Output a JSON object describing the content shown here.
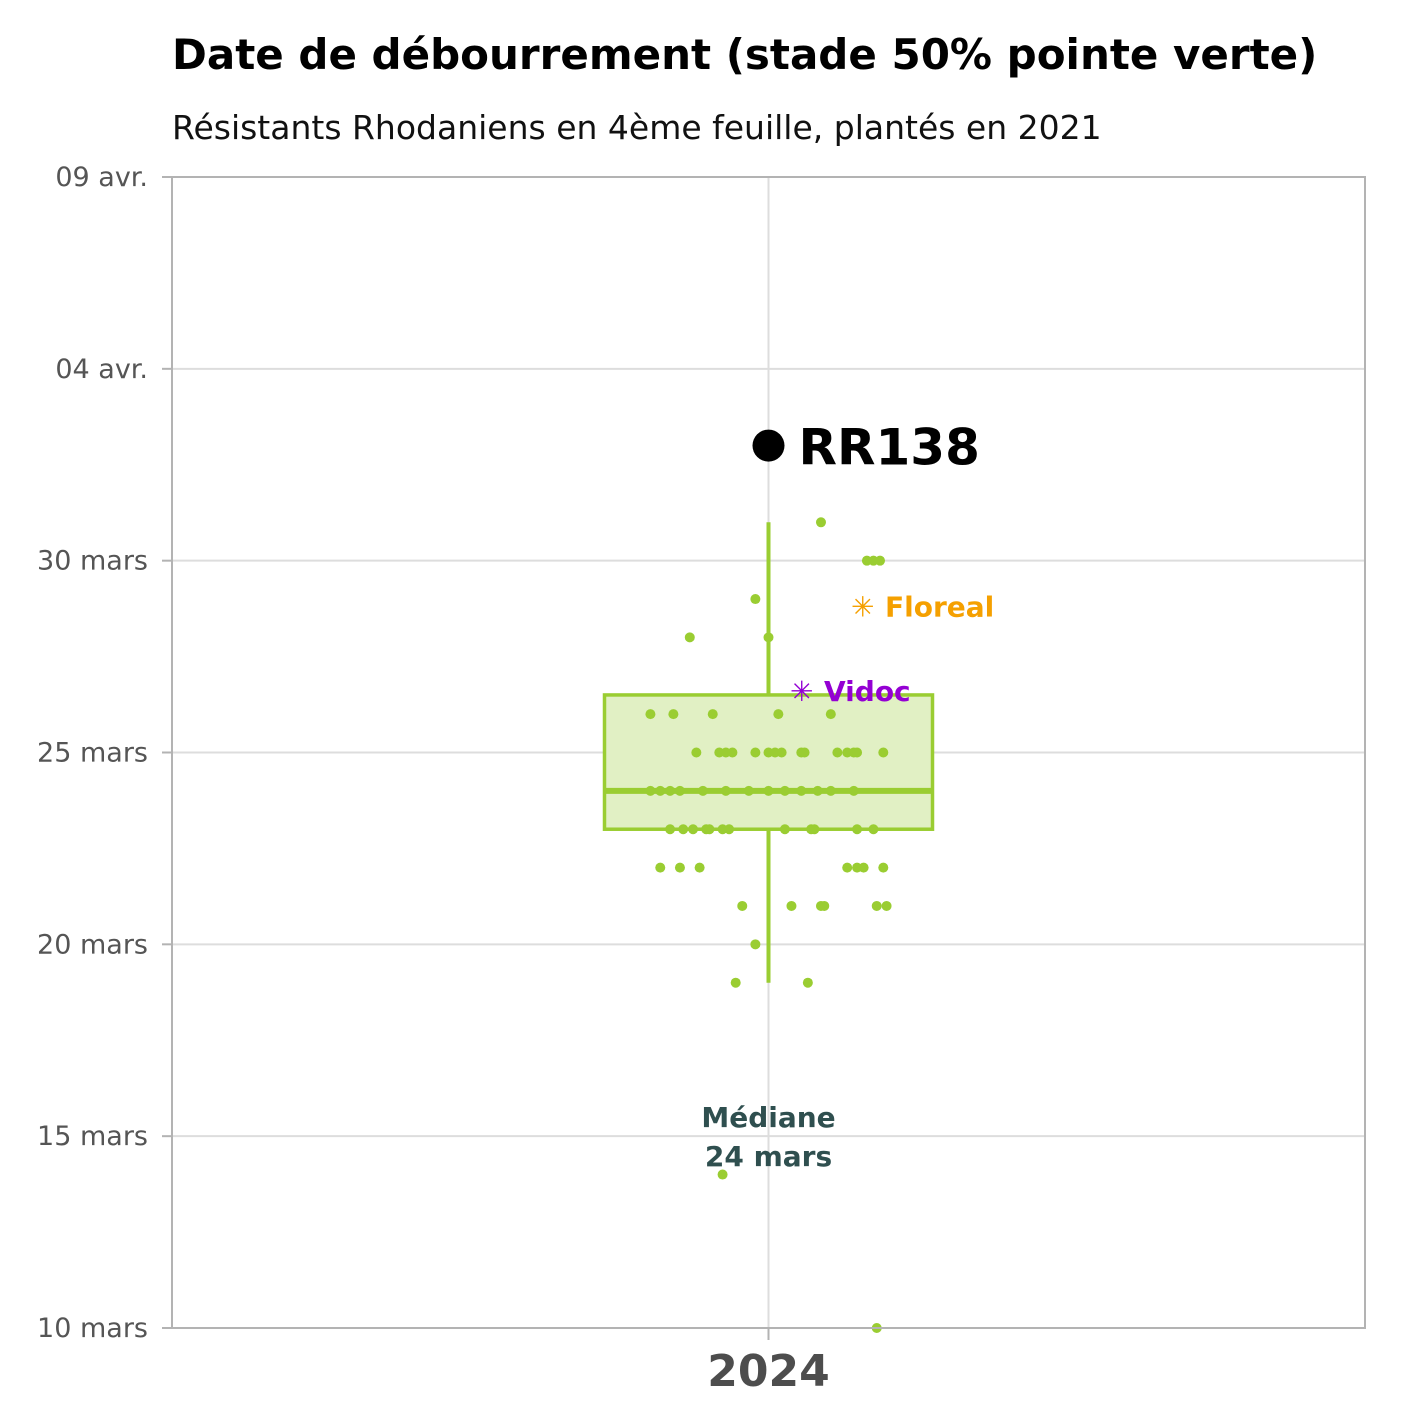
{
  "colors": {
    "box": "#9acd32",
    "box_fill": "#e1f0c4",
    "highlight": "#000000",
    "floreal": "#f5a000",
    "vidoc": "#9400d3",
    "median_label": "#2f4f4f",
    "grid": "#dddddd",
    "frame": "#b3b3b3"
  },
  "chart_data": {
    "type": "box",
    "title": "Date de débourrement (stade 50% pointe verte)",
    "subtitle": "Résistants Rhodaniens en 4ème feuille, plantés en 2021",
    "xlabel": "",
    "ylabel": "",
    "categories": [
      "2024"
    ],
    "ylim": [
      "2024-03-10",
      "2024-04-09"
    ],
    "y_ticks": [
      {
        "date": "2024-03-10",
        "label": "10 mars"
      },
      {
        "date": "2024-03-15",
        "label": "15 mars"
      },
      {
        "date": "2024-03-20",
        "label": "20 mars"
      },
      {
        "date": "2024-03-25",
        "label": "25 mars"
      },
      {
        "date": "2024-03-30",
        "label": "30 mars"
      },
      {
        "date": "2024-04-04",
        "label": "04 avr."
      },
      {
        "date": "2024-04-09",
        "label": "09 avr."
      }
    ],
    "grid": true,
    "box": {
      "min": "2024-03-19",
      "q1": "2024-03-23",
      "median": "2024-03-24",
      "q3": "2024-03-26.5",
      "max": "2024-03-31"
    },
    "points": [
      {
        "date": "2024-03-31",
        "offset": 0.16
      },
      {
        "date": "2024-03-30",
        "offset": 0.3
      },
      {
        "date": "2024-03-30",
        "offset": 0.32
      },
      {
        "date": "2024-03-30",
        "offset": 0.34
      },
      {
        "date": "2024-03-29",
        "offset": -0.04
      },
      {
        "date": "2024-03-28",
        "offset": -0.24
      },
      {
        "date": "2024-03-28",
        "offset": 0.0
      },
      {
        "date": "2024-03-26",
        "offset": -0.36
      },
      {
        "date": "2024-03-26",
        "offset": -0.29
      },
      {
        "date": "2024-03-26",
        "offset": -0.17
      },
      {
        "date": "2024-03-26",
        "offset": 0.03
      },
      {
        "date": "2024-03-26",
        "offset": 0.19
      },
      {
        "date": "2024-03-25",
        "offset": -0.22
      },
      {
        "date": "2024-03-25",
        "offset": -0.15
      },
      {
        "date": "2024-03-25",
        "offset": -0.13
      },
      {
        "date": "2024-03-25",
        "offset": -0.11
      },
      {
        "date": "2024-03-25",
        "offset": -0.04
      },
      {
        "date": "2024-03-25",
        "offset": 0.0
      },
      {
        "date": "2024-03-25",
        "offset": 0.02
      },
      {
        "date": "2024-03-25",
        "offset": 0.04
      },
      {
        "date": "2024-03-25",
        "offset": 0.1
      },
      {
        "date": "2024-03-25",
        "offset": 0.11
      },
      {
        "date": "2024-03-25",
        "offset": 0.21
      },
      {
        "date": "2024-03-25",
        "offset": 0.24
      },
      {
        "date": "2024-03-25",
        "offset": 0.26
      },
      {
        "date": "2024-03-25",
        "offset": 0.27
      },
      {
        "date": "2024-03-25",
        "offset": 0.35
      },
      {
        "date": "2024-03-24",
        "offset": -0.36
      },
      {
        "date": "2024-03-24",
        "offset": -0.33
      },
      {
        "date": "2024-03-24",
        "offset": -0.3
      },
      {
        "date": "2024-03-24",
        "offset": -0.27
      },
      {
        "date": "2024-03-24",
        "offset": -0.2
      },
      {
        "date": "2024-03-24",
        "offset": -0.13
      },
      {
        "date": "2024-03-24",
        "offset": -0.06
      },
      {
        "date": "2024-03-24",
        "offset": 0.0
      },
      {
        "date": "2024-03-24",
        "offset": 0.05
      },
      {
        "date": "2024-03-24",
        "offset": 0.1
      },
      {
        "date": "2024-03-24",
        "offset": 0.15
      },
      {
        "date": "2024-03-24",
        "offset": 0.19
      },
      {
        "date": "2024-03-24",
        "offset": 0.26
      },
      {
        "date": "2024-03-23",
        "offset": -0.3
      },
      {
        "date": "2024-03-23",
        "offset": -0.26
      },
      {
        "date": "2024-03-23",
        "offset": -0.23
      },
      {
        "date": "2024-03-23",
        "offset": -0.19
      },
      {
        "date": "2024-03-23",
        "offset": -0.18
      },
      {
        "date": "2024-03-23",
        "offset": -0.14
      },
      {
        "date": "2024-03-23",
        "offset": -0.12
      },
      {
        "date": "2024-03-23",
        "offset": 0.05
      },
      {
        "date": "2024-03-23",
        "offset": 0.13
      },
      {
        "date": "2024-03-23",
        "offset": 0.14
      },
      {
        "date": "2024-03-23",
        "offset": 0.27
      },
      {
        "date": "2024-03-23",
        "offset": 0.32
      },
      {
        "date": "2024-03-22",
        "offset": -0.33
      },
      {
        "date": "2024-03-22",
        "offset": -0.27
      },
      {
        "date": "2024-03-22",
        "offset": -0.21
      },
      {
        "date": "2024-03-22",
        "offset": 0.24
      },
      {
        "date": "2024-03-22",
        "offset": 0.27
      },
      {
        "date": "2024-03-22",
        "offset": 0.29
      },
      {
        "date": "2024-03-22",
        "offset": 0.35
      },
      {
        "date": "2024-03-21",
        "offset": -0.08
      },
      {
        "date": "2024-03-21",
        "offset": 0.07
      },
      {
        "date": "2024-03-21",
        "offset": 0.16
      },
      {
        "date": "2024-03-21",
        "offset": 0.17
      },
      {
        "date": "2024-03-21",
        "offset": 0.33
      },
      {
        "date": "2024-03-21",
        "offset": 0.36
      },
      {
        "date": "2024-03-20",
        "offset": -0.04
      },
      {
        "date": "2024-03-19",
        "offset": -0.1
      },
      {
        "date": "2024-03-19",
        "offset": 0.12
      },
      {
        "date": "2024-03-14",
        "offset": -0.14
      },
      {
        "date": "2024-03-10",
        "offset": 0.33
      }
    ],
    "highlight": {
      "label": "RR138",
      "date": "2024-04-02"
    },
    "references": [
      {
        "label": "Floreal",
        "symbol": "✳",
        "date": "2024-03-28.8"
      },
      {
        "label": "Vidoc",
        "symbol": "✳",
        "date": "2024-03-26.6"
      }
    ],
    "median_annotation": {
      "line1": "Médiane",
      "line2": "24 mars"
    }
  }
}
